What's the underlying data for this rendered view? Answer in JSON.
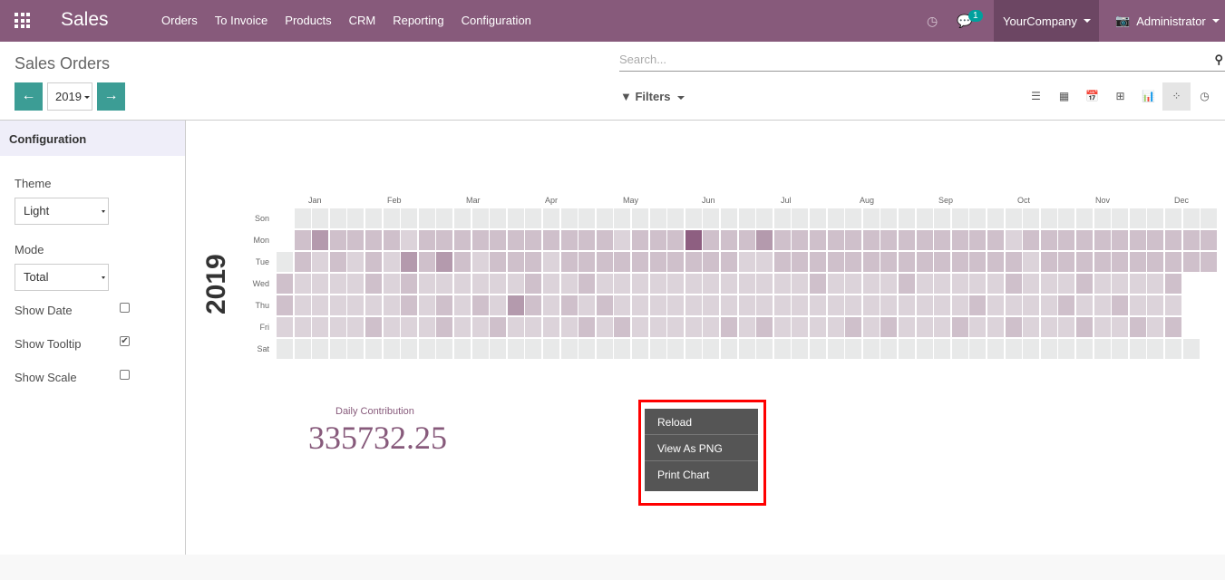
{
  "navbar": {
    "app": "Sales",
    "menu": [
      "Orders",
      "To Invoice",
      "Products",
      "CRM",
      "Reporting",
      "Configuration"
    ],
    "messages_badge": "1",
    "company": "YourCompany",
    "user": "Administrator",
    "color": "#875a7b"
  },
  "control": {
    "title": "Sales Orders",
    "year": "2019",
    "search_placeholder": "Search...",
    "filters": "Filters",
    "views": [
      "list",
      "kanban",
      "calendar",
      "pivot",
      "graph",
      "heatmap",
      "activity"
    ],
    "active_view": "heatmap"
  },
  "sidebar": {
    "header": "Configuration",
    "theme_label": "Theme",
    "theme": "Light",
    "mode_label": "Mode",
    "mode": "Total",
    "options": [
      {
        "label": "Show Date",
        "checked": false
      },
      {
        "label": "Show Tooltip",
        "checked": true
      },
      {
        "label": "Show Scale",
        "checked": false
      }
    ]
  },
  "chart_data": {
    "type": "heatmap",
    "year": "2019",
    "months": [
      "Jan",
      "Feb",
      "Mar",
      "Apr",
      "May",
      "Jun",
      "Jul",
      "Aug",
      "Sep",
      "Oct",
      "Nov",
      "Dec"
    ],
    "days": [
      "Son",
      "Mon",
      "Tue",
      "Wed",
      "Thu",
      "Fri",
      "Sat"
    ],
    "intensity_scale": [
      "#e8e9e9",
      "#dcd3da",
      "#cfc0cb",
      "#b49aad",
      "#8e5f81"
    ],
    "levels_by_day": [
      " 0000000000000000000000000000000000000000000000000000",
      " 2322221222222222221222422232222222222222122222222222",
      "02121213232122212222222222112222222222222212222222222",
      "211112121111112112111111111111211112111112111211112 ",
      "211111121212132121211111111111111111111211112112111 ",
      "111112111211211112121111121211112121112112111211212 ",
      "0000000000000000000000000000000000000000000000000000 "
    ]
  },
  "summary": {
    "label": "Daily Contribution",
    "value": "335732.25"
  },
  "context_menu": [
    "Reload",
    "View As PNG",
    "Print Chart"
  ]
}
